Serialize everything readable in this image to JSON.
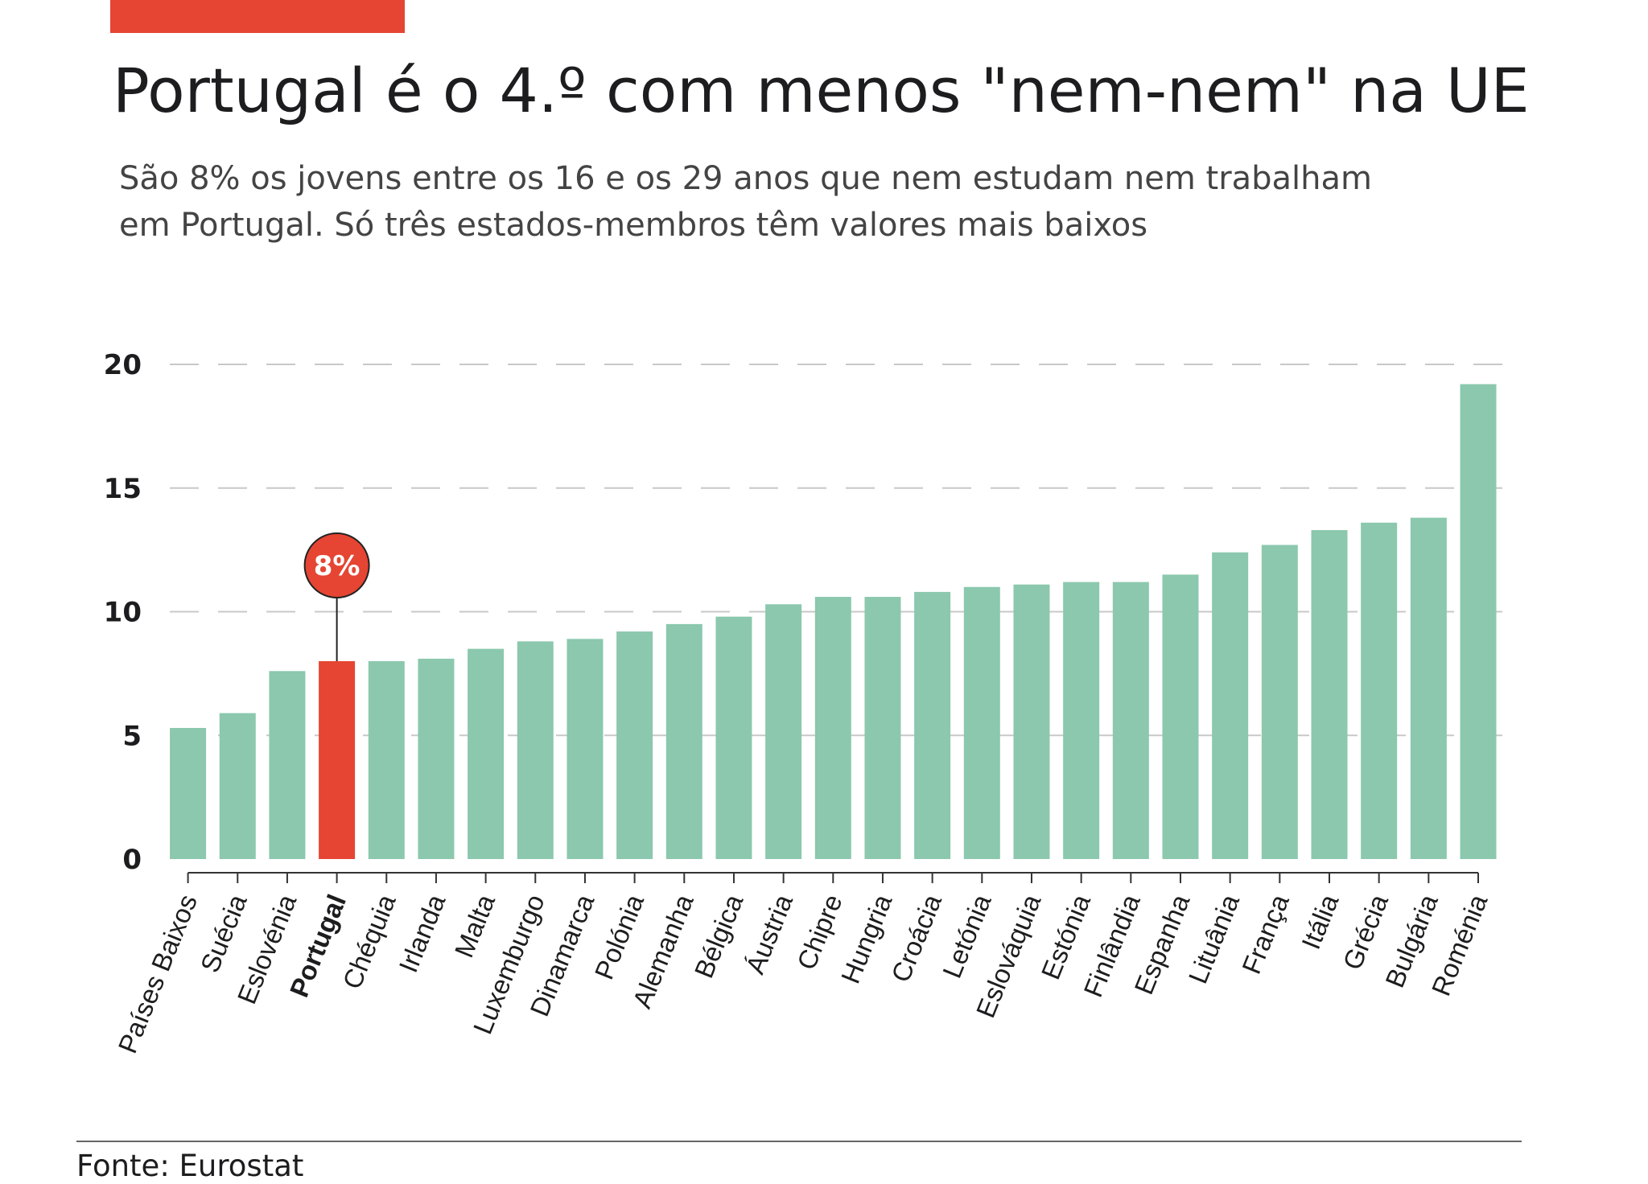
{
  "chart_data": {
    "type": "bar",
    "title": "Portugal é o 4.º com menos \"nem-nem\" na UE",
    "subtitle": [
      "São 8% os jovens entre os 16 e os 29 anos que nem estudam nem trabalham",
      "em Portugal. Só três estados-membros têm valores mais baixos"
    ],
    "source": "Fonte: Eurostat",
    "categories": [
      "Países Baixos",
      "Suécia",
      "Eslovénia",
      "Portugal",
      "Chéquia",
      "Irlanda",
      "Malta",
      "Luxemburgo",
      "Dinamarca",
      "Polónia",
      "Alemanha",
      "Bélgica",
      "Áustria",
      "Chipre",
      "Hungria",
      "Croácia",
      "Letónia",
      "Eslováquia",
      "Estónia",
      "Finlândia",
      "Espanha",
      "Lituânia",
      "França",
      "Itália",
      "Grécia",
      "Bulgária",
      "Roménia"
    ],
    "values": [
      5.3,
      5.9,
      7.6,
      8.0,
      8.0,
      8.1,
      8.5,
      8.8,
      8.9,
      9.2,
      9.5,
      9.8,
      10.3,
      10.6,
      10.6,
      10.8,
      11.0,
      11.1,
      11.2,
      11.2,
      11.5,
      12.4,
      12.7,
      13.3,
      13.6,
      13.8,
      19.2
    ],
    "value_labels": [
      null,
      null,
      null,
      "8%",
      null,
      null,
      null,
      null,
      null,
      null,
      null,
      null,
      null,
      null,
      null,
      null,
      null,
      null,
      null,
      null,
      null,
      null,
      null,
      null,
      null,
      null,
      null
    ],
    "colors": [
      "#8bc8ae",
      "#8bc8ae",
      "#8bc8ae",
      "#e54532",
      "#8bc8ae",
      "#8bc8ae",
      "#8bc8ae",
      "#8bc8ae",
      "#8bc8ae",
      "#8bc8ae",
      "#8bc8ae",
      "#8bc8ae",
      "#8bc8ae",
      "#8bc8ae",
      "#8bc8ae",
      "#8bc8ae",
      "#8bc8ae",
      "#8bc8ae",
      "#8bc8ae",
      "#8bc8ae",
      "#8bc8ae",
      "#8bc8ae",
      "#8bc8ae",
      "#8bc8ae",
      "#8bc8ae",
      "#8bc8ae",
      "#8bc8ae"
    ],
    "ylim": [
      0,
      20
    ],
    "yticks": [
      0,
      5,
      10,
      15,
      20
    ],
    "grid": true
  }
}
